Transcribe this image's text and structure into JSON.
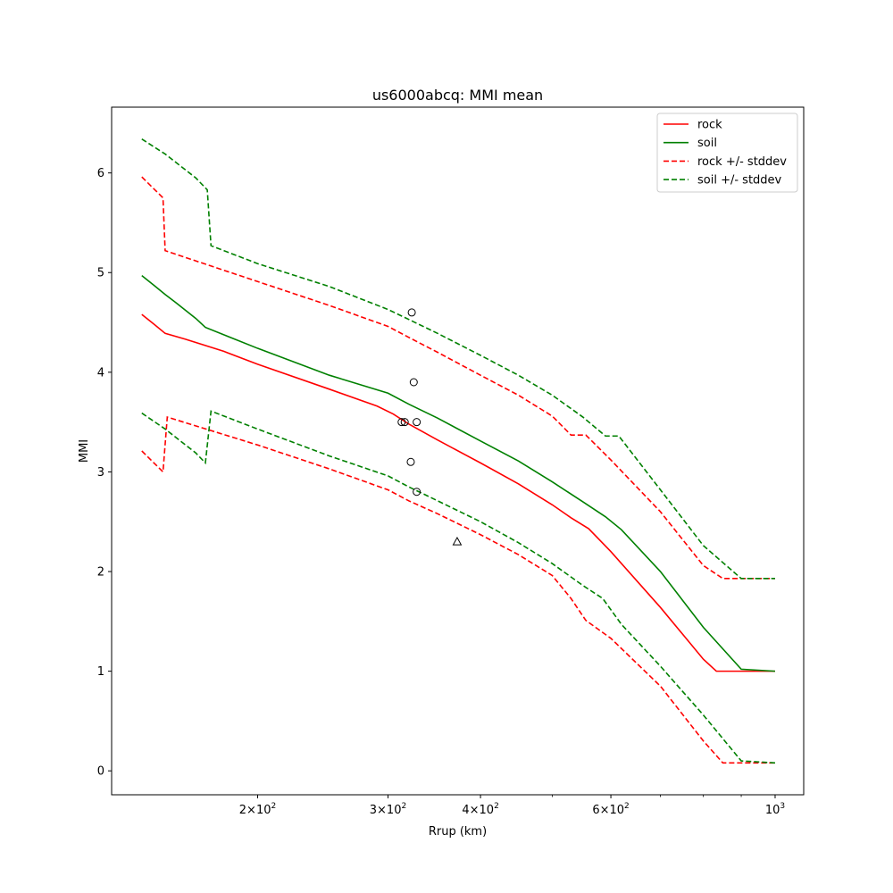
{
  "chart_data": {
    "type": "line",
    "title": "us6000abcq: MMI mean",
    "xlabel": "Rrup (km)",
    "ylabel": "MMI",
    "xscale": "log",
    "xlim": [
      127.0,
      1093.0
    ],
    "ylim": [
      -0.24,
      6.66
    ],
    "grid": false,
    "legend_position": "top-right",
    "x_major_ticks": [
      {
        "value": 200,
        "base": "2",
        "exp": "2"
      },
      {
        "value": 300,
        "base": "3",
        "exp": "2"
      },
      {
        "value": 400,
        "base": "4",
        "exp": "2"
      },
      {
        "value": 600,
        "base": "6",
        "exp": "2"
      },
      {
        "value": 1000,
        "base": "10",
        "exp": "3"
      }
    ],
    "x_minor_ticks": [
      500,
      700,
      800,
      900
    ],
    "y_ticks": [
      0,
      1,
      2,
      3,
      4,
      5,
      6
    ],
    "series": [
      {
        "name": "rock",
        "color": "#ff0000",
        "style": "solid",
        "points": [
          [
            139.5,
            4.58
          ],
          [
            145,
            4.48
          ],
          [
            150,
            4.39
          ],
          [
            160,
            4.33
          ],
          [
            180,
            4.21
          ],
          [
            200,
            4.08
          ],
          [
            250,
            3.83
          ],
          [
            290,
            3.66
          ],
          [
            305,
            3.58
          ],
          [
            320,
            3.48
          ],
          [
            350,
            3.32
          ],
          [
            400,
            3.09
          ],
          [
            450,
            2.88
          ],
          [
            500,
            2.67
          ],
          [
            530,
            2.54
          ],
          [
            560,
            2.43
          ],
          [
            600,
            2.2
          ],
          [
            700,
            1.64
          ],
          [
            800,
            1.12
          ],
          [
            833,
            1.0
          ],
          [
            1000,
            1.0
          ]
        ]
      },
      {
        "name": "soil",
        "color": "#008000",
        "style": "solid",
        "points": [
          [
            139.5,
            4.97
          ],
          [
            145,
            4.87
          ],
          [
            150,
            4.78
          ],
          [
            155,
            4.7
          ],
          [
            165,
            4.54
          ],
          [
            170,
            4.45
          ],
          [
            200,
            4.24
          ],
          [
            250,
            3.97
          ],
          [
            300,
            3.79
          ],
          [
            320,
            3.68
          ],
          [
            350,
            3.54
          ],
          [
            400,
            3.31
          ],
          [
            450,
            3.11
          ],
          [
            500,
            2.9
          ],
          [
            550,
            2.7
          ],
          [
            590,
            2.55
          ],
          [
            620,
            2.42
          ],
          [
            700,
            2.0
          ],
          [
            800,
            1.44
          ],
          [
            900,
            1.02
          ],
          [
            1000,
            1.0
          ]
        ]
      },
      {
        "name": "rock +/- stddev",
        "color": "#ff0000",
        "style": "dashed",
        "points": [
          [
            139.5,
            5.96
          ],
          [
            149,
            5.75
          ],
          [
            150,
            5.22
          ],
          [
            200,
            4.91
          ],
          [
            250,
            4.67
          ],
          [
            300,
            4.46
          ],
          [
            320,
            4.35
          ],
          [
            350,
            4.2
          ],
          [
            400,
            3.97
          ],
          [
            450,
            3.77
          ],
          [
            500,
            3.56
          ],
          [
            530,
            3.37
          ],
          [
            555,
            3.37
          ],
          [
            600,
            3.12
          ],
          [
            700,
            2.6
          ],
          [
            800,
            2.06
          ],
          [
            850,
            1.93
          ],
          [
            1000,
            1.93
          ]
        ]
      },
      {
        "name": "rock +/- stddev",
        "color": "#ff0000",
        "style": "dashed",
        "show_in_legend": false,
        "points": [
          [
            139.5,
            3.21
          ],
          [
            149,
            3.0
          ],
          [
            151,
            3.55
          ],
          [
            200,
            3.27
          ],
          [
            250,
            3.03
          ],
          [
            300,
            2.82
          ],
          [
            320,
            2.71
          ],
          [
            350,
            2.58
          ],
          [
            400,
            2.37
          ],
          [
            450,
            2.17
          ],
          [
            500,
            1.96
          ],
          [
            530,
            1.73
          ],
          [
            555,
            1.51
          ],
          [
            600,
            1.33
          ],
          [
            700,
            0.85
          ],
          [
            800,
            0.3
          ],
          [
            850,
            0.08
          ],
          [
            1000,
            0.08
          ]
        ]
      },
      {
        "name": "soil +/- stddev",
        "color": "#008000",
        "style": "dashed",
        "points": [
          [
            139.5,
            6.34
          ],
          [
            150,
            6.19
          ],
          [
            165,
            5.95
          ],
          [
            171,
            5.83
          ],
          [
            173,
            5.27
          ],
          [
            200,
            5.09
          ],
          [
            250,
            4.86
          ],
          [
            300,
            4.63
          ],
          [
            320,
            4.53
          ],
          [
            350,
            4.39
          ],
          [
            400,
            4.17
          ],
          [
            450,
            3.97
          ],
          [
            500,
            3.77
          ],
          [
            550,
            3.55
          ],
          [
            590,
            3.36
          ],
          [
            615,
            3.36
          ],
          [
            700,
            2.82
          ],
          [
            800,
            2.26
          ],
          [
            900,
            1.93
          ],
          [
            1000,
            1.93
          ]
        ]
      },
      {
        "name": "soil +/- stddev",
        "color": "#008000",
        "style": "dashed",
        "show_in_legend": false,
        "points": [
          [
            139.5,
            3.59
          ],
          [
            150,
            3.43
          ],
          [
            165,
            3.19
          ],
          [
            170,
            3.09
          ],
          [
            173,
            3.61
          ],
          [
            200,
            3.43
          ],
          [
            250,
            3.16
          ],
          [
            300,
            2.96
          ],
          [
            320,
            2.85
          ],
          [
            350,
            2.71
          ],
          [
            400,
            2.5
          ],
          [
            450,
            2.29
          ],
          [
            500,
            2.08
          ],
          [
            550,
            1.86
          ],
          [
            585,
            1.73
          ],
          [
            620,
            1.47
          ],
          [
            700,
            1.05
          ],
          [
            800,
            0.56
          ],
          [
            900,
            0.1
          ],
          [
            1000,
            0.08
          ]
        ]
      }
    ],
    "observations": [
      {
        "marker": "circle",
        "points": [
          [
            323,
            4.6
          ],
          [
            325,
            3.9
          ],
          [
            313,
            3.5
          ],
          [
            316,
            3.5
          ],
          [
            328,
            3.5
          ],
          [
            322,
            3.1
          ],
          [
            328,
            2.8
          ]
        ]
      },
      {
        "marker": "triangle",
        "points": [
          [
            372,
            2.3
          ]
        ]
      }
    ],
    "legend": [
      {
        "label": "rock",
        "color": "#ff0000",
        "style": "solid"
      },
      {
        "label": "soil",
        "color": "#008000",
        "style": "solid"
      },
      {
        "label": "rock +/- stddev",
        "color": "#ff0000",
        "style": "dashed"
      },
      {
        "label": "soil +/- stddev",
        "color": "#008000",
        "style": "dashed"
      }
    ]
  }
}
